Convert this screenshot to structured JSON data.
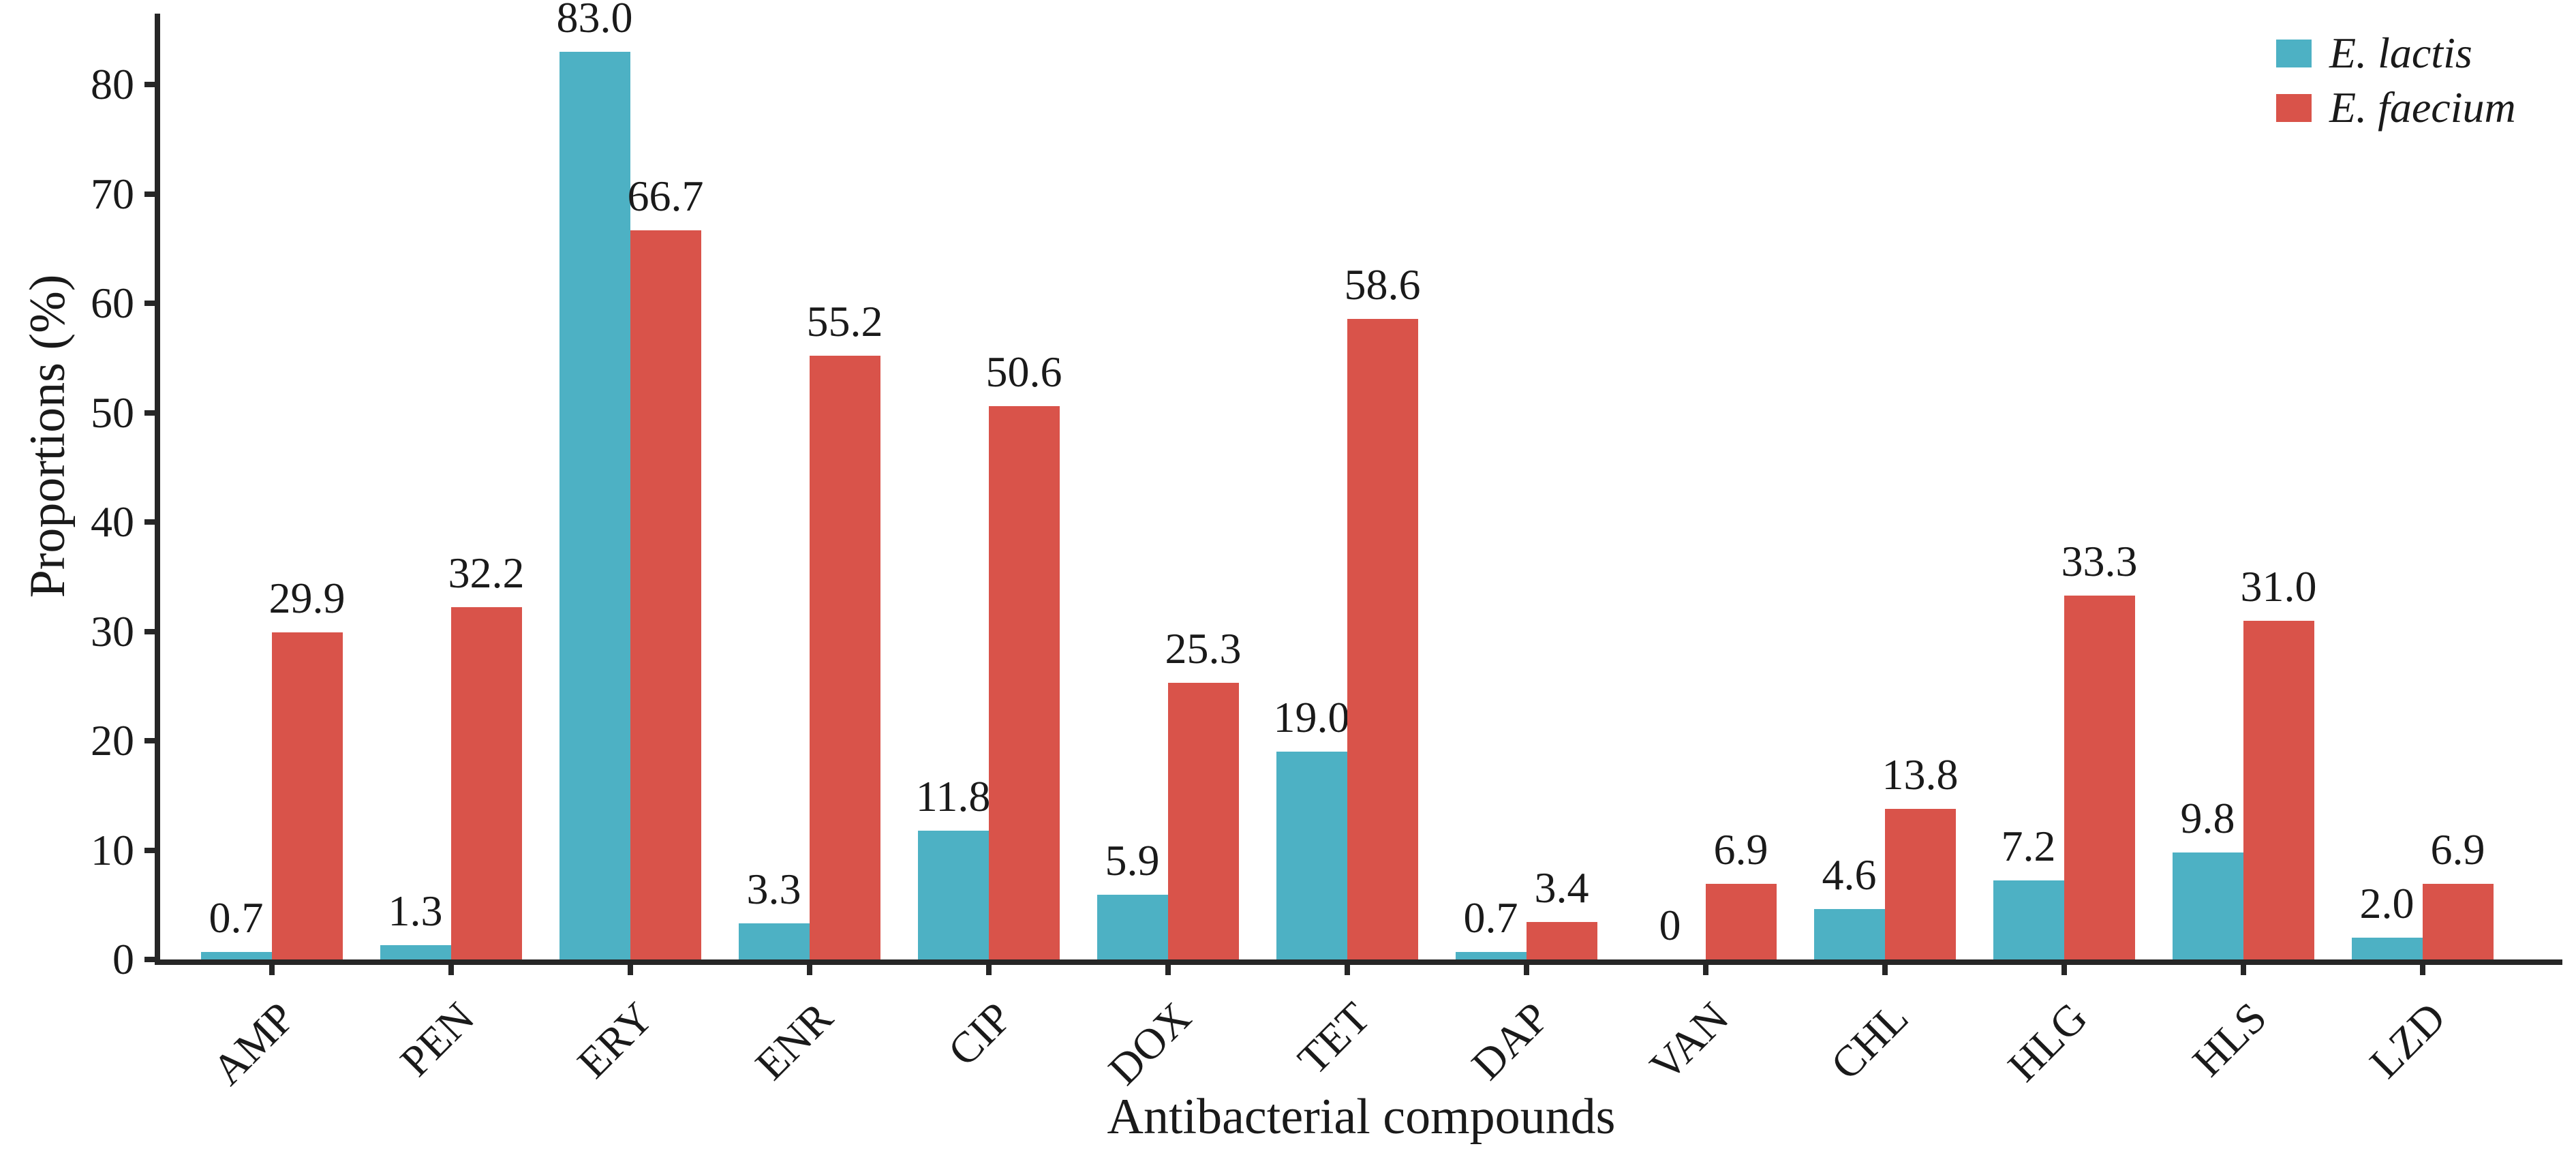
{
  "chart_data": {
    "type": "bar",
    "title": "",
    "xlabel": "Antibacterial compounds",
    "ylabel": "Proportions (%)",
    "categories": [
      "AMP",
      "PEN",
      "ERY",
      "ENR",
      "CIP",
      "DOX",
      "TET",
      "DAP",
      "VAN",
      "CHL",
      "HLG",
      "HLS",
      "LZD"
    ],
    "series": [
      {
        "name": "E. lactis",
        "color": "#4db1c4",
        "values": [
          0.7,
          1.3,
          83.0,
          3.3,
          11.8,
          5.9,
          19.0,
          0.7,
          0,
          4.6,
          7.2,
          9.8,
          2.0
        ],
        "labels": [
          "0.7",
          "1.3",
          "83.0",
          "3.3",
          "11.8",
          "5.9",
          "19.0",
          "0.7",
          "0",
          "4.6",
          "7.2",
          "9.8",
          "2.0"
        ]
      },
      {
        "name": "E. faecium",
        "color": "#d9534a",
        "values": [
          29.9,
          32.2,
          66.7,
          55.2,
          50.6,
          25.3,
          58.6,
          3.4,
          6.9,
          13.8,
          33.3,
          31.0,
          6.9
        ],
        "labels": [
          "29.9",
          "32.2",
          "66.7",
          "55.2",
          "50.6",
          "25.3",
          "58.6",
          "3.4",
          "6.9",
          "13.8",
          "33.3",
          "31.0",
          "6.9"
        ]
      }
    ],
    "y_ticks": [
      0,
      10,
      20,
      30,
      40,
      50,
      60,
      70,
      80
    ],
    "ylim": [
      0,
      86.5
    ],
    "grid": false,
    "legend_position": "top-right",
    "axis_color": "#262626"
  },
  "legend": {
    "items": [
      {
        "label": "E. lactis",
        "color": "#4db1c4"
      },
      {
        "label": "E. faecium",
        "color": "#d9534a"
      }
    ]
  }
}
